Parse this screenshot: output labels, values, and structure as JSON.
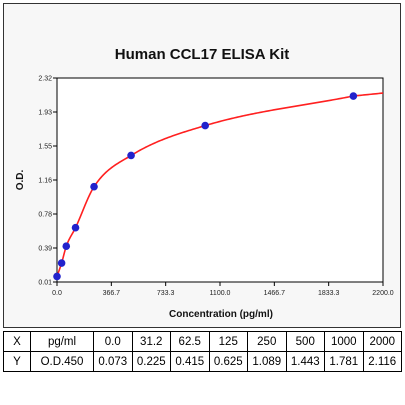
{
  "chart_data": {
    "type": "scatter",
    "title": "Human CCL17 ELISA Kit",
    "xlabel": "Concentration (pg/ml)",
    "ylabel": "O.D.",
    "xlim": [
      0,
      2200
    ],
    "ylim": [
      0.01,
      2.32
    ],
    "x_ticks": [
      "0.0",
      "366.7",
      "733.3",
      "1100.0",
      "1466.7",
      "1833.3",
      "2200.0"
    ],
    "y_ticks": [
      "0.01",
      "0.39",
      "0.78",
      "1.16",
      "1.55",
      "1.93",
      "2.32"
    ],
    "grid": false,
    "marker_color": "#2222cc",
    "curve_color": "#ff2020",
    "series": [
      {
        "x": [
          0,
          31.2,
          62.5,
          125,
          250,
          500,
          1000,
          2000
        ],
        "y": [
          0.073,
          0.225,
          0.415,
          0.625,
          1.089,
          1.443,
          1.781,
          2.116
        ]
      }
    ]
  },
  "table": {
    "rows": [
      {
        "head": "X",
        "unit": "pg/ml",
        "values": [
          "0.0",
          "31.2",
          "62.5",
          "125",
          "250",
          "500",
          "1000",
          "2000"
        ]
      },
      {
        "head": "Y",
        "unit": "O.D.450",
        "values": [
          "0.073",
          "0.225",
          "0.415",
          "0.625",
          "1.089",
          "1.443",
          "1.781",
          "2.116"
        ]
      }
    ]
  }
}
